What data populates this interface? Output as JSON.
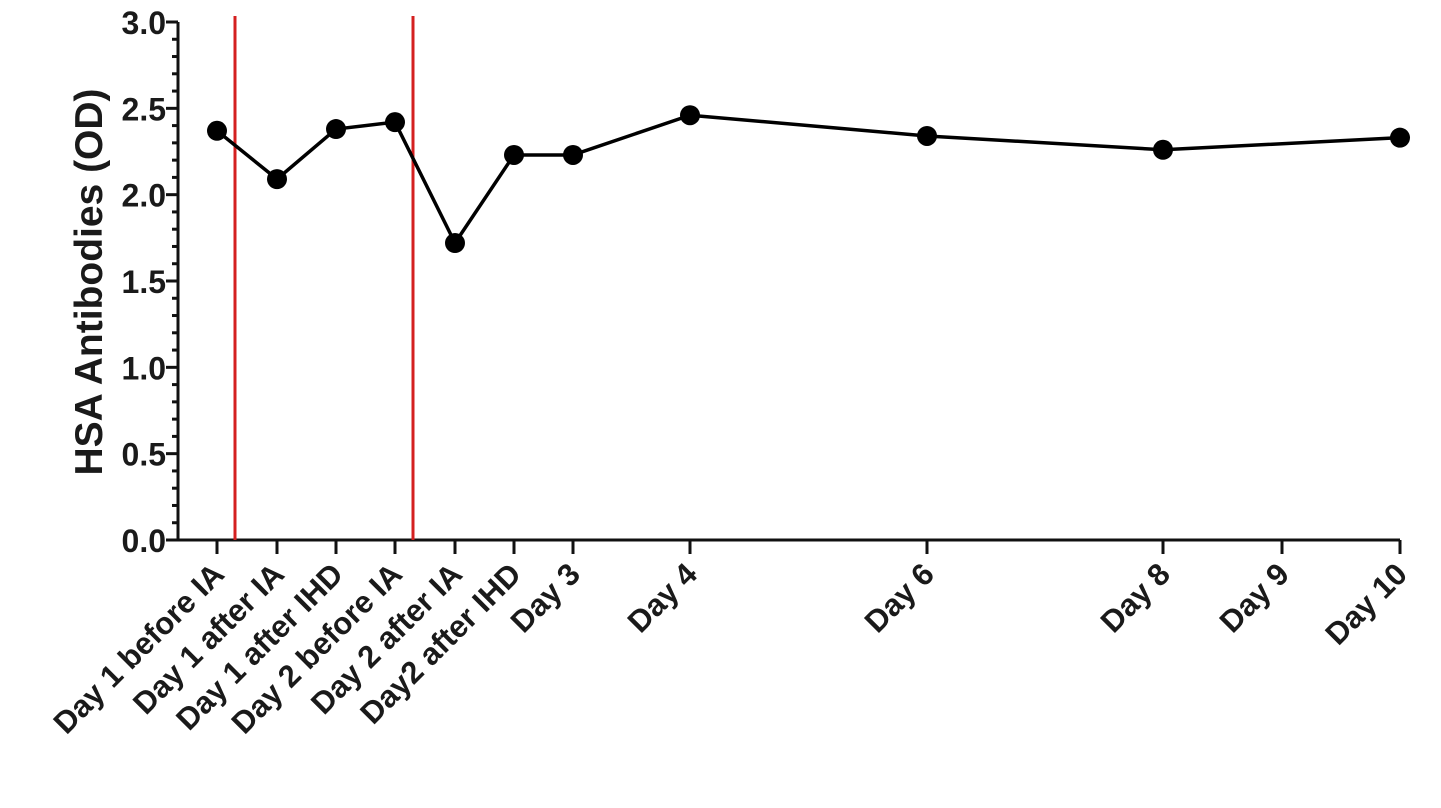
{
  "chart_data": {
    "type": "line",
    "title": "",
    "xlabel": "",
    "ylabel": "HSA Antibodies (OD)",
    "ylim": [
      0,
      3.0
    ],
    "y_ticks": [
      "0.0",
      "0.5",
      "1.0",
      "1.5",
      "2.0",
      "2.5",
      "3.0"
    ],
    "grid": false,
    "legend": "none",
    "colors": {
      "series": "#000000",
      "reference_lines": "#d42020"
    },
    "categories": [
      "Day 1 before IA",
      "Day 1 after IA",
      "Day 1 after IHD",
      "Day 2 before  IA",
      "Day 2 after  IA",
      "Day2 after IHD",
      "Day 3",
      "Day 4",
      "Day 6",
      "Day 8",
      "Day 9",
      "Day 10"
    ],
    "series": [
      {
        "values": [
          2.37,
          2.09,
          2.38,
          2.42,
          1.72,
          2.23,
          2.23,
          2.46,
          2.34,
          2.26,
          null,
          2.33
        ]
      }
    ],
    "reference_lines": [
      {
        "between": [
          "Day 1 before IA",
          "Day 1 after IA"
        ]
      },
      {
        "between": [
          "Day 2 before  IA",
          "Day 2 after  IA"
        ]
      }
    ]
  }
}
